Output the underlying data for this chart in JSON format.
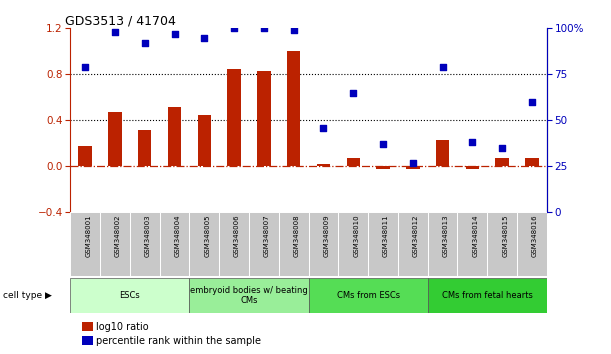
{
  "title": "GDS3513 / 41704",
  "samples": [
    "GSM348001",
    "GSM348002",
    "GSM348003",
    "GSM348004",
    "GSM348005",
    "GSM348006",
    "GSM348007",
    "GSM348008",
    "GSM348009",
    "GSM348010",
    "GSM348011",
    "GSM348012",
    "GSM348013",
    "GSM348014",
    "GSM348015",
    "GSM348016"
  ],
  "log10_ratio": [
    0.18,
    0.47,
    0.32,
    0.52,
    0.45,
    0.85,
    0.83,
    1.0,
    0.02,
    0.07,
    -0.02,
    -0.02,
    0.23,
    -0.02,
    0.07,
    0.07
  ],
  "percentile_rank": [
    79,
    98,
    92,
    97,
    95,
    100,
    100,
    99,
    46,
    65,
    37,
    27,
    79,
    38,
    35,
    60
  ],
  "bar_color": "#bb2200",
  "dot_color": "#0000bb",
  "ylim_left": [
    -0.4,
    1.2
  ],
  "ylim_right": [
    0,
    100
  ],
  "yticks_left": [
    -0.4,
    0.0,
    0.4,
    0.8,
    1.2
  ],
  "yticks_right": [
    0,
    25,
    50,
    75,
    100
  ],
  "ytick_labels_right": [
    "0",
    "25",
    "50",
    "75",
    "100%"
  ],
  "hlines_dotted": [
    0.4,
    0.8
  ],
  "zero_line_color": "#bb2200",
  "cell_type_groups": [
    {
      "label": "ESCs",
      "start": 0,
      "end": 4,
      "color": "#ccffcc"
    },
    {
      "label": "embryoid bodies w/ beating\nCMs",
      "start": 4,
      "end": 8,
      "color": "#99ee99"
    },
    {
      "label": "CMs from ESCs",
      "start": 8,
      "end": 12,
      "color": "#55dd55"
    },
    {
      "label": "CMs from fetal hearts",
      "start": 12,
      "end": 16,
      "color": "#33cc33"
    }
  ],
  "cell_type_label": "cell type",
  "legend_red_label": "log10 ratio",
  "legend_blue_label": "percentile rank within the sample",
  "tick_area_color": "#c8c8c8",
  "bar_width": 0.45
}
